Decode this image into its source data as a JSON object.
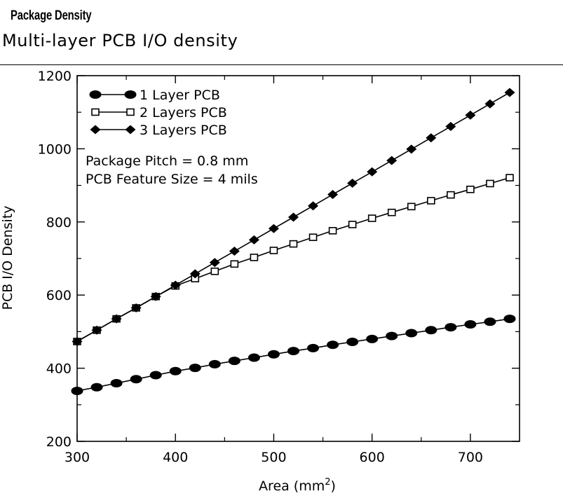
{
  "header": {
    "kicker": "Package Density",
    "subtitle": "Multi-layer PCB I/O density"
  },
  "chart_data": {
    "type": "line",
    "xlabel": "Area (mm",
    "xlabel_superscript": "2",
    "xlabel_suffix": ")",
    "ylabel": "PCB I/O Density",
    "xlim": [
      300,
      740
    ],
    "ylim": [
      200,
      1200
    ],
    "x_ticks": [
      300,
      400,
      500,
      600,
      700
    ],
    "y_ticks": [
      200,
      400,
      600,
      800,
      1000,
      1200
    ],
    "grid": false,
    "legend_position": "top-left",
    "annotations": [
      "Package Pitch = 0.8 mm",
      "PCB Feature Size = 4 mils"
    ],
    "x": [
      300,
      320,
      340,
      360,
      380,
      400,
      420,
      440,
      460,
      480,
      500,
      520,
      540,
      560,
      580,
      600,
      620,
      640,
      660,
      680,
      700,
      720,
      740
    ],
    "series": [
      {
        "name": "1 Layer PCB",
        "marker": "filled-circle",
        "values": [
          338,
          348,
          359,
          370,
          381,
          392,
          401,
          411,
          420,
          429,
          438,
          447,
          455,
          464,
          472,
          480,
          488,
          496,
          504,
          512,
          520,
          527,
          535
        ]
      },
      {
        "name": "2 Layers PCB",
        "marker": "open-square",
        "values": [
          473,
          504,
          535,
          565,
          596,
          625,
          645,
          665,
          685,
          703,
          722,
          740,
          758,
          776,
          793,
          810,
          826,
          842,
          858,
          874,
          889,
          905,
          921
        ]
      },
      {
        "name": "3 Layers PCB",
        "marker": "filled-diamond",
        "values": [
          473,
          504,
          535,
          565,
          596,
          627,
          658,
          689,
          720,
          751,
          782,
          813,
          844,
          875,
          906,
          937,
          968,
          999,
          1030,
          1061,
          1092,
          1123,
          1154
        ]
      }
    ]
  }
}
